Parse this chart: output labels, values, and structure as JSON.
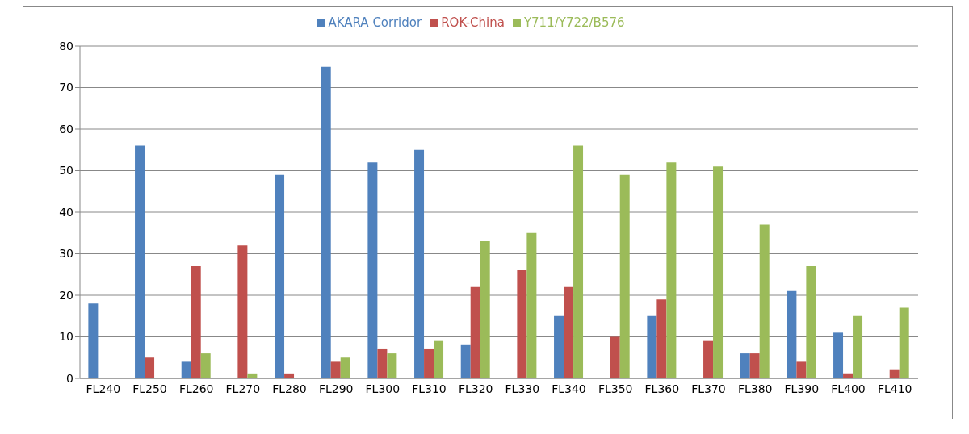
{
  "chart_data": {
    "type": "bar",
    "categories": [
      "FL240",
      "FL250",
      "FL260",
      "FL270",
      "FL280",
      "FL290",
      "FL300",
      "FL310",
      "FL320",
      "FL330",
      "FL340",
      "FL350",
      "FL360",
      "FL370",
      "FL380",
      "FL390",
      "FL400",
      "FL410"
    ],
    "series": [
      {
        "name": "AKARA Corridor",
        "color": "#4f81bd",
        "values": [
          18,
          56,
          4,
          null,
          49,
          75,
          52,
          55,
          8,
          null,
          15,
          null,
          15,
          null,
          6,
          21,
          11,
          null
        ]
      },
      {
        "name": "ROK-China",
        "color": "#c0504d",
        "values": [
          null,
          5,
          27,
          32,
          1,
          4,
          7,
          7,
          22,
          26,
          22,
          10,
          19,
          9,
          6,
          4,
          1,
          2
        ]
      },
      {
        "name": "Y711/Y722/B576",
        "color": "#9bbb59",
        "values": [
          null,
          null,
          6,
          1,
          null,
          5,
          6,
          9,
          33,
          35,
          56,
          49,
          52,
          51,
          37,
          27,
          15,
          17
        ]
      }
    ],
    "ylim": [
      0,
      80
    ],
    "yticks": [
      0,
      10,
      20,
      30,
      40,
      50,
      60,
      70,
      80
    ],
    "grid": "y",
    "legend": "top"
  }
}
